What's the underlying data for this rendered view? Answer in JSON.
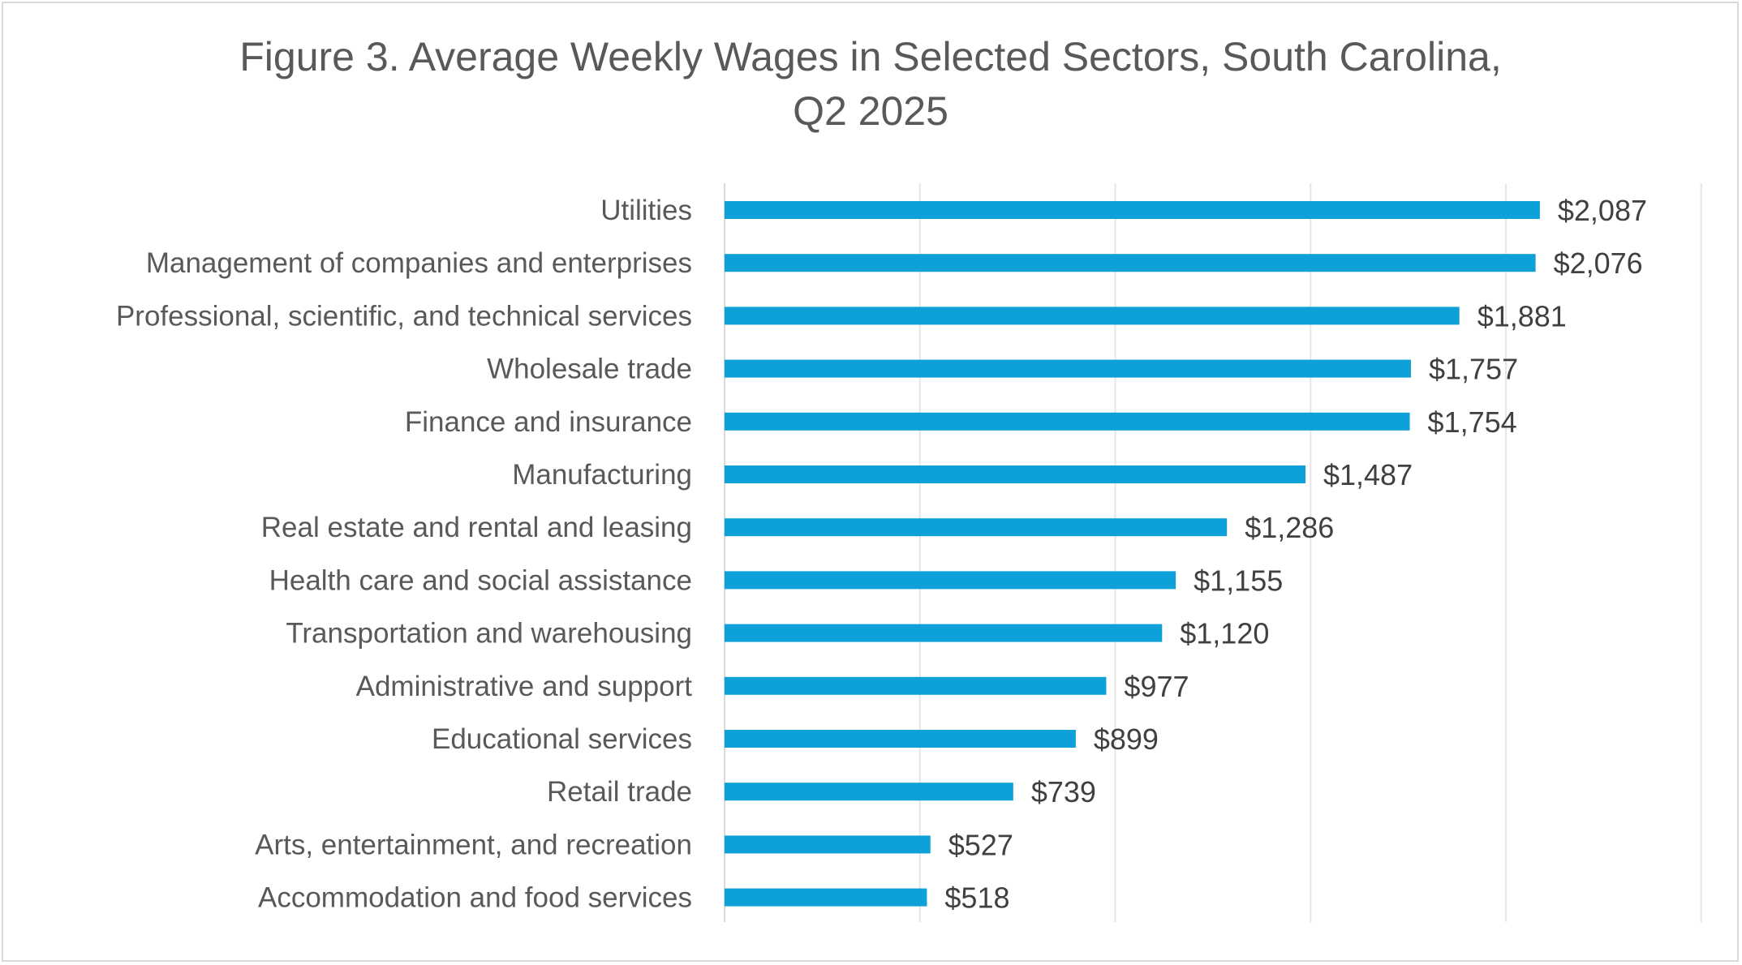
{
  "chart_data": {
    "type": "bar",
    "orientation": "horizontal",
    "title_lines": [
      "Figure 3. Average Weekly Wages in Selected Sectors, South Carolina,",
      "Q2 2025"
    ],
    "categories": [
      "Utilities",
      "Management of companies and enterprises",
      "Professional, scientific, and technical services",
      "Wholesale trade",
      "Finance and insurance",
      "Manufacturing",
      "Real estate and rental and leasing",
      "Health care and social assistance",
      "Transportation and warehousing",
      "Administrative and support",
      "Educational services",
      "Retail trade",
      "Arts, entertainment, and recreation",
      "Accommodation and food services"
    ],
    "values": [
      2087,
      2076,
      1881,
      1757,
      1754,
      1487,
      1286,
      1155,
      1120,
      977,
      899,
      739,
      527,
      518
    ],
    "data_labels": [
      "$2,087",
      "$2,076",
      "$1,881",
      "$1,757",
      "$1,754",
      "$1,487",
      "$1,286",
      "$1,155",
      "$1,120",
      "$977",
      "$899",
      "$739",
      "$527",
      "$518"
    ],
    "xlim": [
      0,
      2500
    ],
    "gridline_step": 500,
    "grid": true,
    "legend": "none",
    "bar_color": "#0ea0d8"
  }
}
